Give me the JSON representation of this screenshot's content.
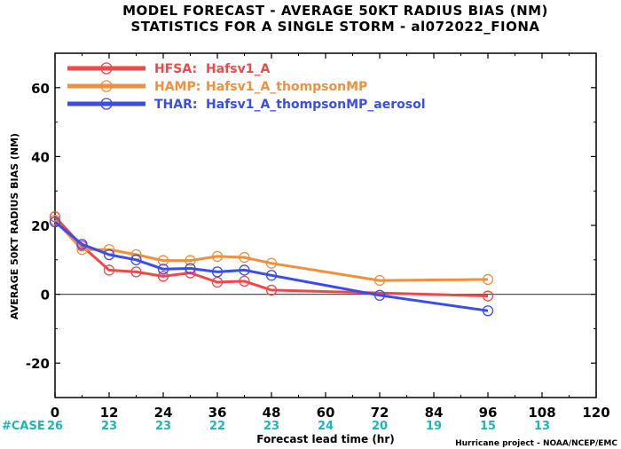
{
  "chart_data": {
    "type": "line",
    "title": "MODEL FORECAST - AVERAGE 50KT RADIUS BIAS (NM)",
    "subtitle": "STATISTICS FOR A SINGLE STORM - al072022_FIONA",
    "xlabel": "Forecast lead time (hr)",
    "ylabel": "AVERAGE 50KT RADIUS BIAS (NM)",
    "xlim": [
      0,
      120
    ],
    "ylim": [
      -30,
      70
    ],
    "xticks": [
      0,
      12,
      24,
      36,
      48,
      60,
      72,
      84,
      96,
      108,
      120
    ],
    "yticks": [
      -20,
      0,
      20,
      40,
      60
    ],
    "zero_line": true,
    "legend_position": "top-left",
    "series": [
      {
        "name": "HFSA:",
        "label": "Hafsv1_A",
        "color": "#f04848",
        "x": [
          0,
          6,
          12,
          18,
          24,
          30,
          36,
          42,
          48,
          96
        ],
        "y": [
          22.5,
          14,
          7,
          6.5,
          5.2,
          6.2,
          3.5,
          3.8,
          1.2,
          -0.5
        ]
      },
      {
        "name": "HAMP:",
        "label": "Hafsv1_A_thompsonMP",
        "color": "#f0903c",
        "x": [
          0,
          6,
          12,
          18,
          24,
          30,
          36,
          42,
          48,
          72,
          96
        ],
        "y": [
          21.5,
          13,
          13,
          11.5,
          9.8,
          9.8,
          11,
          10.7,
          9,
          4,
          4.3
        ]
      },
      {
        "name": "THAR:",
        "label": "Hafsv1_A_thompsonMP_aerosol",
        "color": "#3a4cf0",
        "x": [
          0,
          6,
          12,
          18,
          24,
          30,
          36,
          42,
          48,
          72,
          96
        ],
        "y": [
          21,
          14.5,
          11.5,
          10,
          7.3,
          7.5,
          6.5,
          7,
          5.5,
          -0.3,
          -4.8
        ]
      }
    ],
    "case_label": "#CASE",
    "cases": {
      "x": [
        0,
        12,
        24,
        36,
        48,
        60,
        72,
        84,
        96,
        108
      ],
      "values": [
        "26",
        "23",
        "23",
        "22",
        "23",
        "24",
        "20",
        "19",
        "15",
        "13"
      ]
    }
  },
  "credit": "Hurricane project - NOAA/NCEP/EMC"
}
